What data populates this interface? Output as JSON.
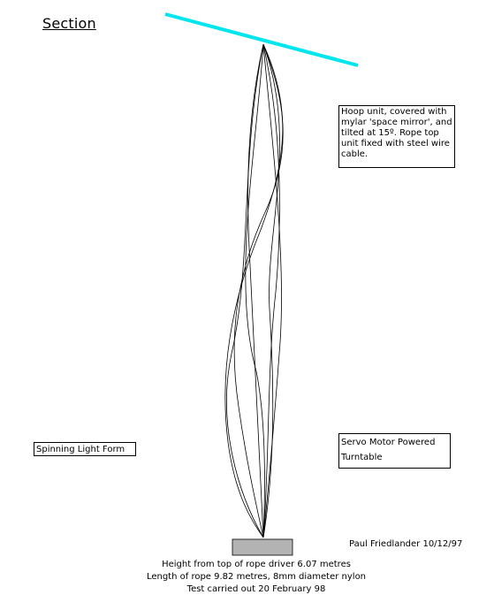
{
  "title": "Section",
  "labels": {
    "hoop_unit": "Hoop unit, covered with mylar 'space mirror', and tilted at 15º.  Rope top unit fixed with steel wire cable.",
    "servo_motor": "Servo Motor Powered Turntable",
    "spinning_light_form": "Spinning Light Form"
  },
  "signature": "Paul Friedlander 10/12/97",
  "caption": {
    "line1": "Height from top of rope driver 6.07 metres",
    "line2": "Length of rope 9.82 metres, 8mm diameter nylon",
    "line3": "Test carried out 20 February 98"
  },
  "colors": {
    "hoop": "#00e5ee",
    "turntable": "#b3b3b3",
    "rope": "#000000"
  }
}
